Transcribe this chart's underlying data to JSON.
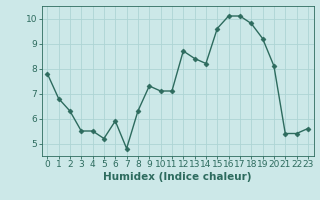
{
  "x": [
    0,
    1,
    2,
    3,
    4,
    5,
    6,
    7,
    8,
    9,
    10,
    11,
    12,
    13,
    14,
    15,
    16,
    17,
    18,
    19,
    20,
    21,
    22,
    23
  ],
  "y": [
    7.8,
    6.8,
    6.3,
    5.5,
    5.5,
    5.2,
    5.9,
    4.8,
    6.3,
    7.3,
    7.1,
    7.1,
    8.7,
    8.4,
    8.2,
    9.6,
    10.1,
    10.1,
    9.8,
    9.2,
    8.1,
    5.4,
    5.4,
    5.6
  ],
  "line_color": "#2d6b5e",
  "marker": "D",
  "marker_size": 2.5,
  "bg_color": "#cce8e8",
  "grid_color": "#aed4d4",
  "xlabel": "Humidex (Indice chaleur)",
  "xlim": [
    -0.5,
    23.5
  ],
  "ylim": [
    4.5,
    10.5
  ],
  "yticks": [
    5,
    6,
    7,
    8,
    9,
    10
  ],
  "xticks": [
    0,
    1,
    2,
    3,
    4,
    5,
    6,
    7,
    8,
    9,
    10,
    11,
    12,
    13,
    14,
    15,
    16,
    17,
    18,
    19,
    20,
    21,
    22,
    23
  ],
  "tick_label_fontsize": 6.5,
  "xlabel_fontsize": 7.5,
  "line_width": 1.0
}
